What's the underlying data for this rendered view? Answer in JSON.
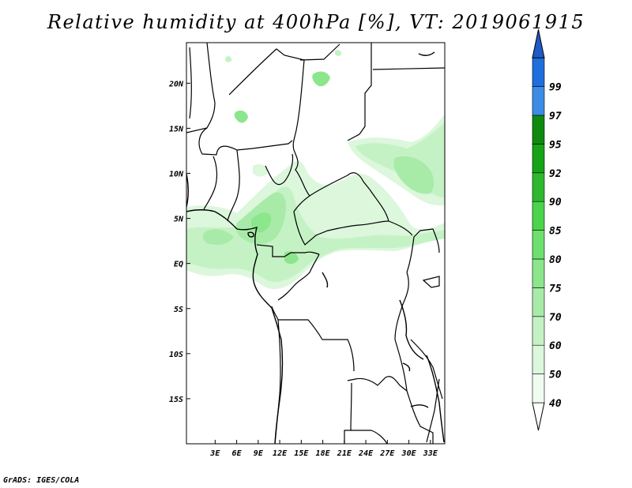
{
  "title": "Relative humidity at 400hPa [%], VT: 2019061915",
  "footer": "GrADS: IGES/COLA",
  "map": {
    "lon_range": [
      -1,
      35
    ],
    "lat_range": [
      -20,
      24.5
    ],
    "lon_ticks": [
      {
        "value": 3,
        "label": "3E"
      },
      {
        "value": 6,
        "label": "6E"
      },
      {
        "value": 9,
        "label": "9E"
      },
      {
        "value": 12,
        "label": "12E"
      },
      {
        "value": 15,
        "label": "15E"
      },
      {
        "value": 18,
        "label": "18E"
      },
      {
        "value": 21,
        "label": "21E"
      },
      {
        "value": 24,
        "label": "24E"
      },
      {
        "value": 27,
        "label": "27E"
      },
      {
        "value": 30,
        "label": "30E"
      },
      {
        "value": 33,
        "label": "33E"
      }
    ],
    "lat_ticks": [
      {
        "value": 20,
        "label": "20N"
      },
      {
        "value": 15,
        "label": "15N"
      },
      {
        "value": 10,
        "label": "10N"
      },
      {
        "value": 5,
        "label": "5N"
      },
      {
        "value": 0,
        "label": "EQ"
      },
      {
        "value": -5,
        "label": "5S"
      },
      {
        "value": -10,
        "label": "10S"
      },
      {
        "value": -15,
        "label": "15S"
      }
    ]
  },
  "colorbar": {
    "levels": [
      {
        "label": "40",
        "color": "#f0fcf0"
      },
      {
        "label": "50",
        "color": "#dcf7dc"
      },
      {
        "label": "60",
        "color": "#c4f2c4"
      },
      {
        "label": "70",
        "color": "#a8eba8"
      },
      {
        "label": "75",
        "color": "#8ce68c"
      },
      {
        "label": "80",
        "color": "#6de06d"
      },
      {
        "label": "85",
        "color": "#4cd34c"
      },
      {
        "label": "90",
        "color": "#2db82d"
      },
      {
        "label": "92",
        "color": "#17a317"
      },
      {
        "label": "95",
        "color": "#0f8a0f"
      },
      {
        "label": "97",
        "color": "#3c8ce6"
      },
      {
        "label": "99",
        "color": "#1e6edc"
      }
    ],
    "low_color": "#ffffff",
    "high_color": "#1e5ac8"
  }
}
